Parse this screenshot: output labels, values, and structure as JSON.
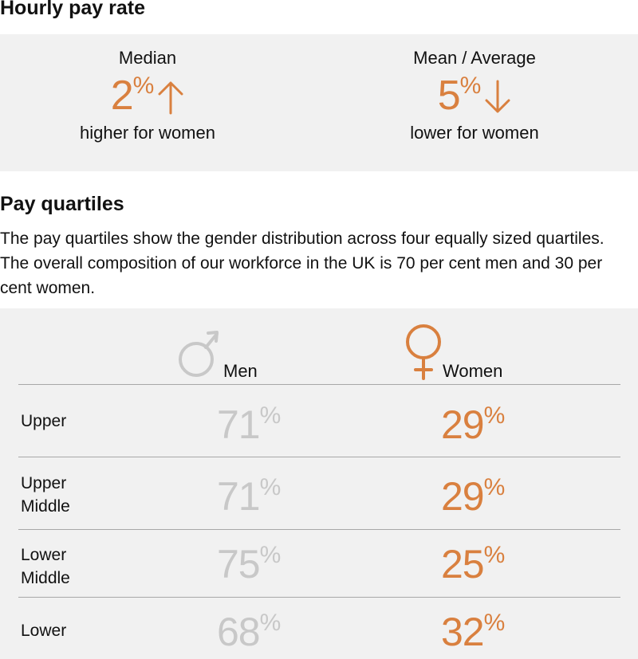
{
  "hourly": {
    "title": "Hourly pay rate",
    "median": {
      "label": "Median",
      "value": "2",
      "unit": "%",
      "direction": "up",
      "caption": "higher for women"
    },
    "mean": {
      "label": "Mean / Average",
      "value": "5",
      "unit": "%",
      "direction": "down",
      "caption": "lower for women"
    }
  },
  "quartiles": {
    "title": "Pay quartiles",
    "description": "The pay quartiles show the gender distribution across four equally sized quartiles. The overall composition of our workforce in the UK is 70 per cent men and 30 per cent women.",
    "men_header": "Men",
    "women_header": "Women",
    "unit": "%",
    "rows": [
      {
        "label_line1": "Upper",
        "label_line2": "",
        "men": "71",
        "women": "29"
      },
      {
        "label_line1": "Upper",
        "label_line2": "Middle",
        "men": "71",
        "women": "29"
      },
      {
        "label_line1": "Lower",
        "label_line2": "Middle",
        "men": "75",
        "women": "25"
      },
      {
        "label_line1": "Lower",
        "label_line2": "",
        "men": "68",
        "women": "32"
      }
    ]
  },
  "colors": {
    "accent": "#d9803f",
    "muted": "#c8c8c8",
    "panel": "#f1f1f1",
    "rule": "#a8a8a8"
  },
  "icons": [
    "arrow-up-icon",
    "arrow-down-icon",
    "male-symbol-icon",
    "female-symbol-icon"
  ]
}
